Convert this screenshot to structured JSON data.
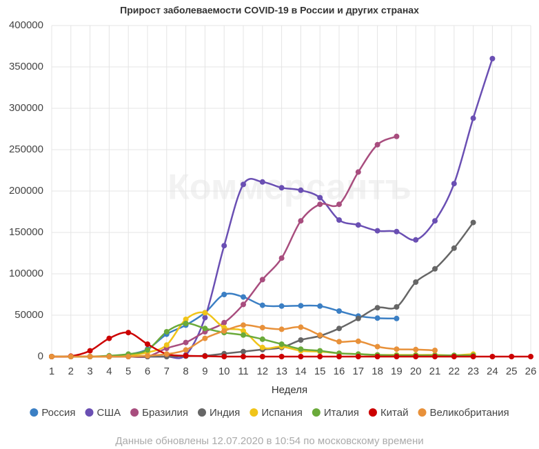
{
  "chart_data": {
    "type": "line",
    "title": "Прирост заболеваемости COVID-19 в России и других странах",
    "watermark": "Коммерсантъ",
    "x_label": "Неделя",
    "note": "Данные обновлены 12.07.2020 в 10:54 по московскому времени",
    "x": [
      1,
      2,
      3,
      4,
      5,
      6,
      7,
      8,
      9,
      10,
      11,
      12,
      13,
      14,
      15,
      16,
      17,
      18,
      19,
      20,
      21,
      22,
      23,
      24,
      25,
      26
    ],
    "xlim": [
      1,
      26
    ],
    "xticks": [
      1,
      2,
      3,
      4,
      5,
      6,
      7,
      8,
      9,
      10,
      11,
      12,
      13,
      14,
      15,
      16,
      17,
      18,
      19,
      20,
      21,
      22,
      23,
      24,
      25,
      26
    ],
    "ylim": [
      0,
      400000
    ],
    "yticks": [
      0,
      50000,
      100000,
      150000,
      200000,
      250000,
      300000,
      350000,
      400000
    ],
    "grid": true,
    "legend": "bottom",
    "series": [
      {
        "name": "Россия",
        "color": "#3b7fc4",
        "values": [
          0,
          0,
          0,
          500,
          2500,
          9000,
          27000,
          38000,
          53000,
          75000,
          72000,
          62000,
          61000,
          61500,
          61000,
          55000,
          49000,
          46500,
          46000,
          null,
          null,
          null,
          null,
          null,
          null,
          null
        ]
      },
      {
        "name": "США",
        "color": "#6a4fb3",
        "values": [
          0,
          0,
          0,
          0,
          0,
          0,
          0,
          2000,
          47000,
          134000,
          208000,
          211000,
          204000,
          201000,
          192000,
          165000,
          159000,
          152000,
          151000,
          141000,
          164000,
          209000,
          288000,
          360000,
          null,
          null
        ]
      },
      {
        "name": "Бразилия",
        "color": "#a84d7e",
        "values": [
          0,
          0,
          0,
          0,
          0,
          0,
          10000,
          17000,
          30000,
          41000,
          63000,
          93000,
          119000,
          164000,
          184000,
          184000,
          223000,
          256000,
          266000,
          null,
          null,
          null,
          null,
          null,
          null,
          null
        ]
      },
      {
        "name": "Индия",
        "color": "#666666",
        "values": [
          0,
          0,
          0,
          0,
          0,
          0,
          0,
          500,
          1000,
          3500,
          6000,
          8500,
          11000,
          20000,
          25000,
          34000,
          46000,
          59000,
          60000,
          90000,
          106000,
          131000,
          162000,
          null,
          null,
          null
        ]
      },
      {
        "name": "Испания",
        "color": "#f0c419",
        "values": [
          0,
          0,
          0,
          0,
          1000,
          5000,
          14000,
          45000,
          53000,
          35000,
          31000,
          11000,
          12000,
          7000,
          6000,
          4000,
          3000,
          2000,
          2000,
          2000,
          2000,
          1500,
          3000,
          null,
          null,
          null
        ]
      },
      {
        "name": "Италия",
        "color": "#6aaa3a",
        "values": [
          0,
          0,
          0,
          1000,
          3000,
          8000,
          30000,
          40000,
          34000,
          29000,
          26000,
          21000,
          15000,
          9000,
          7000,
          4000,
          3000,
          2000,
          1500,
          1500,
          1500,
          1500,
          1500,
          null,
          null,
          null
        ]
      },
      {
        "name": "Китай",
        "color": "#cc0000",
        "values": [
          0,
          500,
          7000,
          22000,
          29000,
          15000,
          3000,
          1000,
          500,
          0,
          0,
          0,
          0,
          0,
          0,
          0,
          0,
          0,
          0,
          0,
          0,
          0,
          0,
          0,
          0,
          0
        ]
      },
      {
        "name": "Великобритания",
        "color": "#e8913a",
        "values": [
          0,
          0,
          0,
          0,
          0,
          1000,
          3000,
          8000,
          22000,
          31000,
          38000,
          35000,
          33000,
          35500,
          26000,
          18000,
          18500,
          12000,
          9000,
          8500,
          7500,
          null,
          null,
          null,
          null,
          null
        ]
      }
    ]
  }
}
